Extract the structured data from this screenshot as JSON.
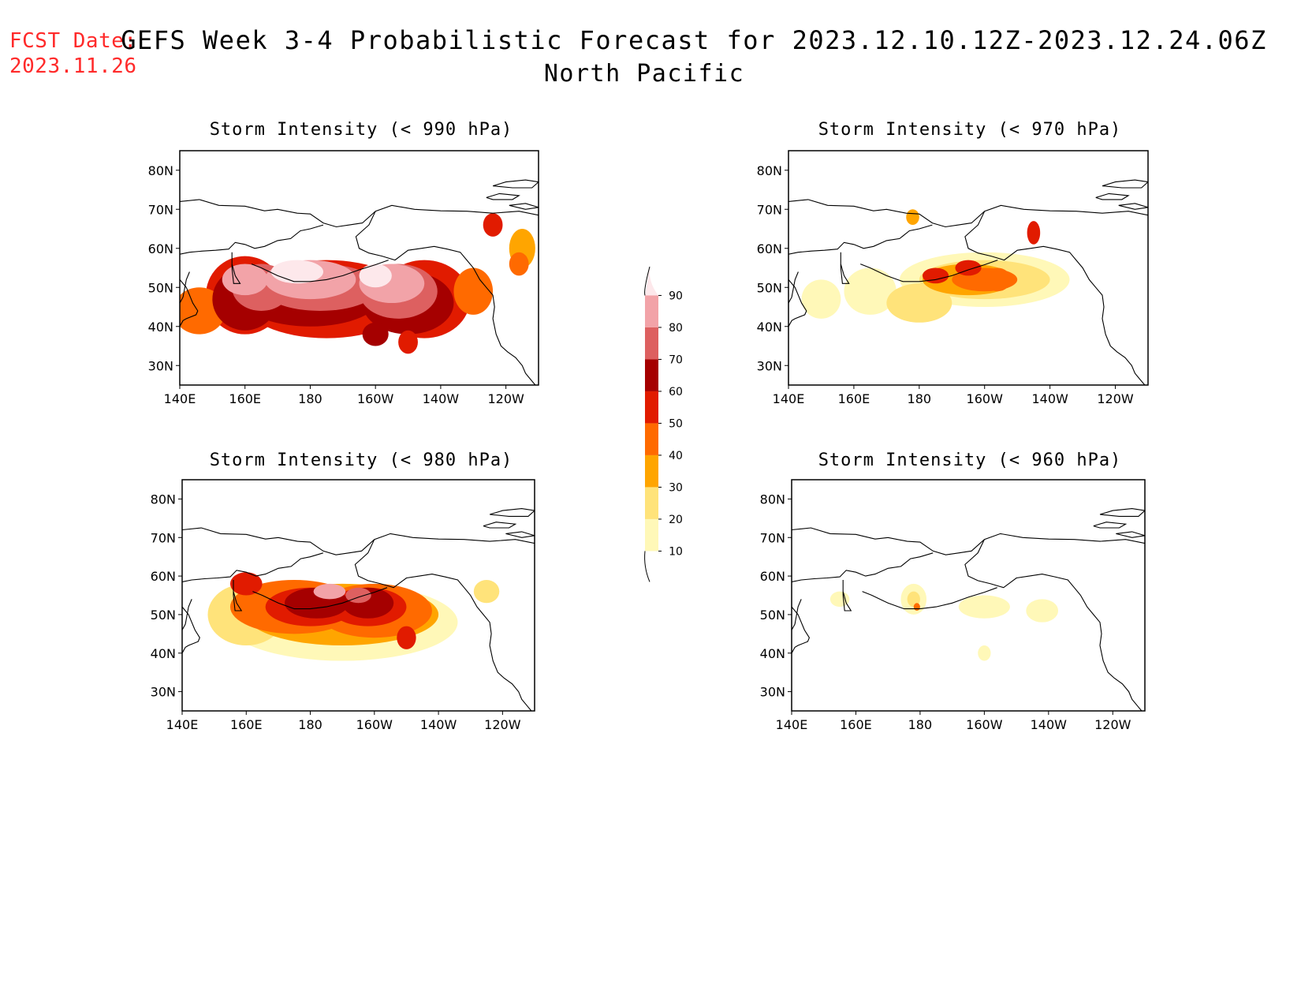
{
  "fcst_label": "FCST Date:",
  "fcst_date": "2023.11.26",
  "title": "GEFS Week 3-4 Probabilistic Forecast for 2023.12.10.12Z-2023.12.24.06Z",
  "subtitle": "North Pacific",
  "panels": [
    {
      "id": "p990",
      "title": "Storm Intensity (< 990 hPa)"
    },
    {
      "id": "p970",
      "title": "Storm Intensity (< 970 hPa)"
    },
    {
      "id": "p980",
      "title": "Storm Intensity (< 980 hPa)"
    },
    {
      "id": "p960",
      "title": "Storm Intensity (< 960 hPa)"
    }
  ],
  "axes": {
    "lat_labels": [
      "80N",
      "70N",
      "60N",
      "50N",
      "40N",
      "30N"
    ],
    "lat_values": [
      80,
      70,
      60,
      50,
      40,
      30
    ],
    "lon_labels": [
      "140E",
      "160E",
      "180",
      "160W",
      "140W",
      "120W"
    ],
    "lon_values": [
      140,
      160,
      180,
      200,
      220,
      240
    ],
    "lon_range": [
      140,
      250
    ],
    "lat_range": [
      25,
      85
    ]
  },
  "colorbar": {
    "levels": [
      10,
      20,
      30,
      40,
      50,
      60,
      70,
      80,
      90
    ],
    "labels": [
      "90",
      "80",
      "70",
      "60",
      "50",
      "40",
      "30",
      "20",
      "10"
    ],
    "colors": [
      "#fff8b8",
      "#ffe37a",
      "#ffa500",
      "#ff6a00",
      "#e11b00",
      "#a50000",
      "#dd6060",
      "#f2a3a8",
      "#fde8eb"
    ]
  }
}
